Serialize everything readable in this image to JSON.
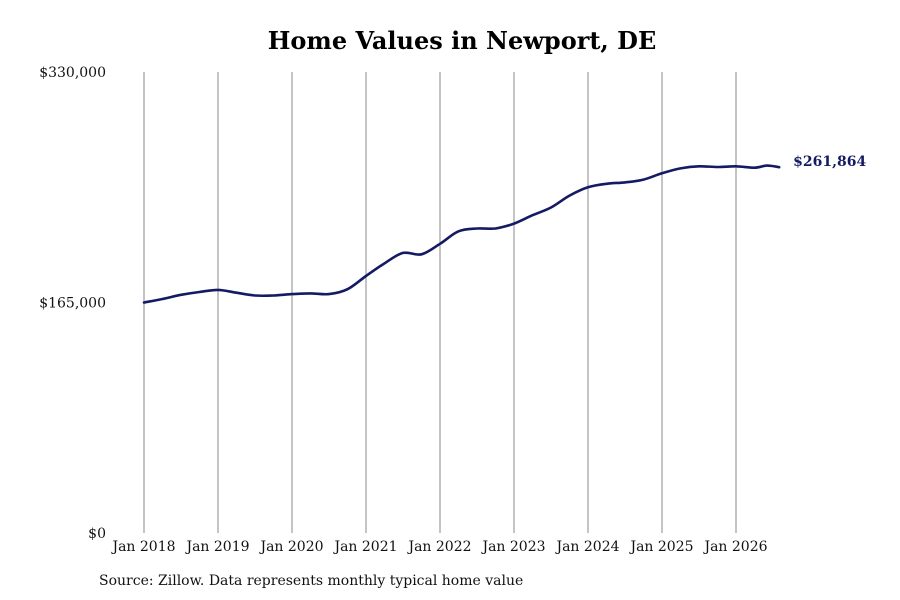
{
  "chart_data": {
    "type": "line",
    "title": "Home Values in Newport, DE",
    "xlabel": "",
    "ylabel": "",
    "x_tick_labels": [
      "Jan 2018",
      "Jan 2019",
      "Jan 2020",
      "Jan 2021",
      "Jan 2022",
      "Jan 2023",
      "Jan 2024",
      "Jan 2025",
      "Jan 2026"
    ],
    "y_tick_labels": [
      "$330,000",
      "$165,000",
      "$0"
    ],
    "y_ticks": [
      330000,
      165000,
      0
    ],
    "ylim": [
      0,
      330000
    ],
    "xlim": [
      "2018-01",
      "2026-08"
    ],
    "grid": "vertical lines at each January",
    "line_color": "#141a63",
    "end_label": "$261,864",
    "series": [
      {
        "x": [
          "2018-01",
          "2018-04",
          "2018-07",
          "2018-10",
          "2019-01",
          "2019-04",
          "2019-07",
          "2019-10",
          "2020-01",
          "2020-04",
          "2020-07",
          "2020-10",
          "2021-01",
          "2021-04",
          "2021-07",
          "2021-10",
          "2022-01",
          "2022-04",
          "2022-07",
          "2022-10",
          "2023-01",
          "2023-04",
          "2023-07",
          "2023-10",
          "2024-01",
          "2024-04",
          "2024-07",
          "2024-10",
          "2025-01",
          "2025-04",
          "2025-07",
          "2025-10",
          "2026-01",
          "2026-04",
          "2026-06",
          "2026-08"
        ],
        "y": [
          165000,
          167500,
          170500,
          172500,
          174000,
          172000,
          170000,
          170000,
          171000,
          171500,
          171000,
          174500,
          184000,
          193000,
          200500,
          199500,
          207000,
          216000,
          218000,
          218000,
          221500,
          227500,
          233000,
          241500,
          247500,
          250000,
          251000,
          253000,
          257500,
          261000,
          262500,
          262000,
          262500,
          261500,
          263000,
          261864
        ]
      }
    ]
  },
  "footer": {
    "source": "Source: Zillow. Data represents monthly typical home value"
  }
}
